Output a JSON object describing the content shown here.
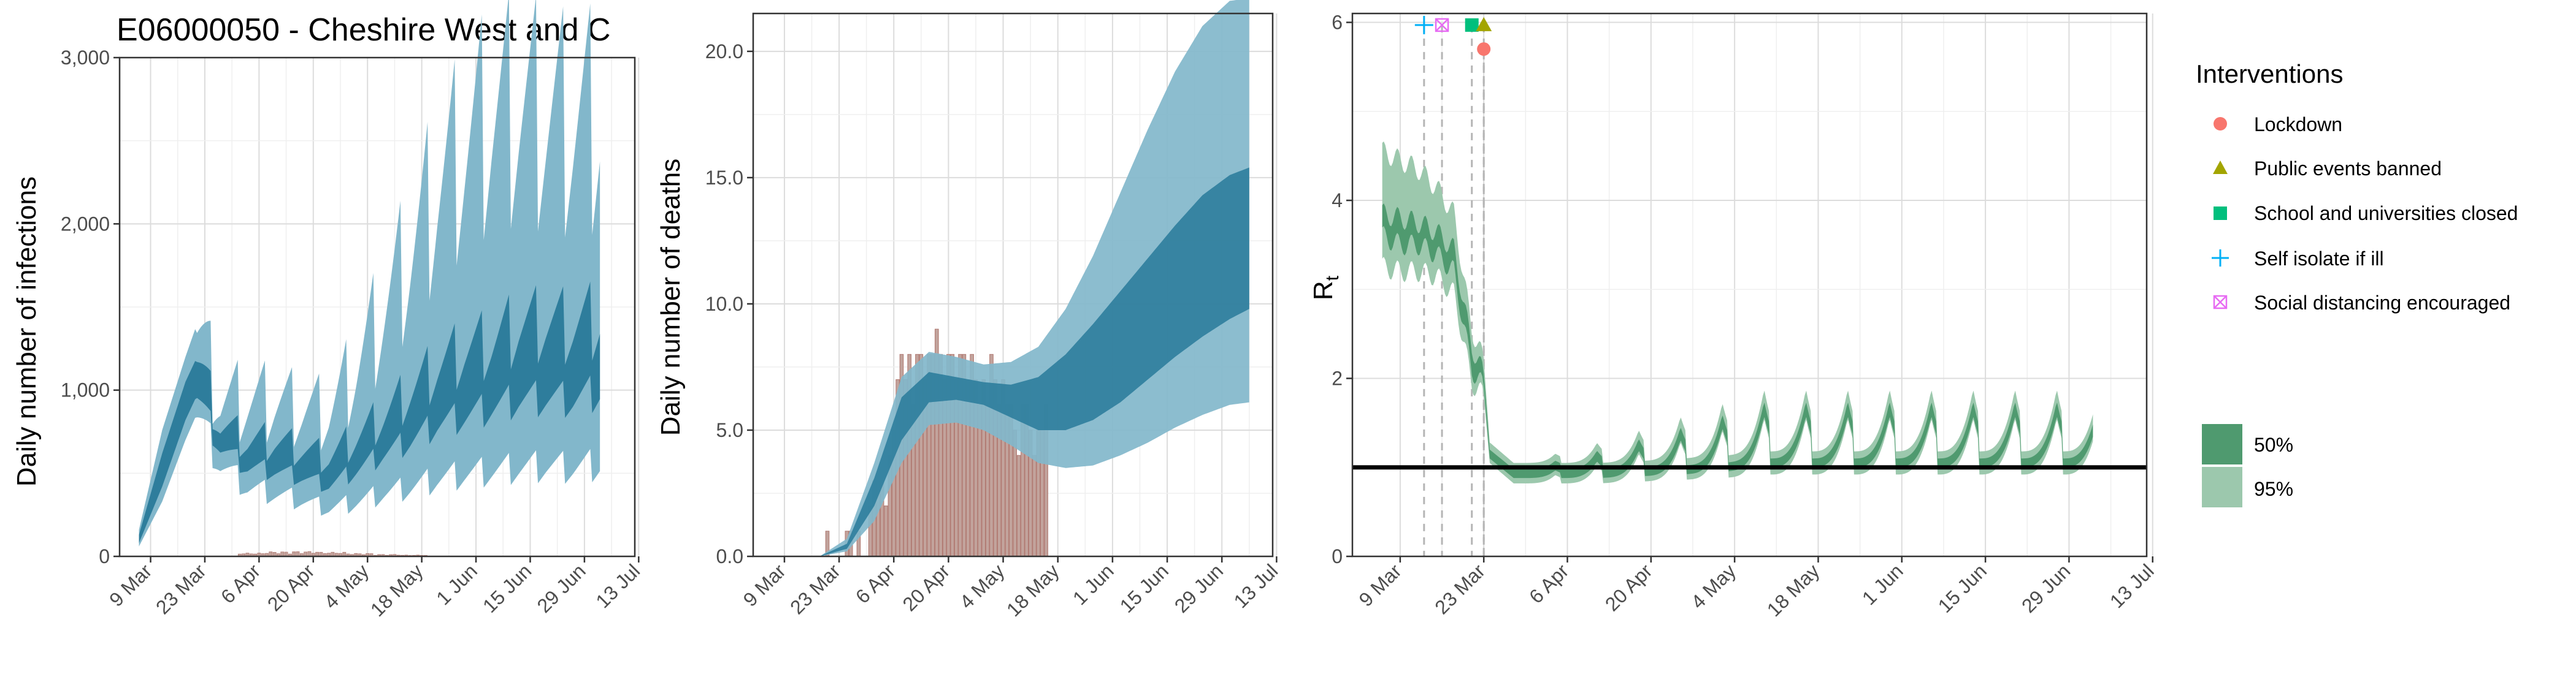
{
  "figure": {
    "title": "E06000050 - Cheshire West and C"
  },
  "colors": {
    "blue_dark": "#2e7d9c",
    "blue_light": "#82b7cb",
    "bar": "#c2a39c",
    "bar_stroke": "#b07870",
    "green_dark": "#4f9a6f",
    "green_light": "#9cc8ad",
    "grid_major": "#dcdcdc",
    "grid_minor": "#efefef",
    "lockdown": "#f8766d",
    "public_events": "#a3a500",
    "school": "#00bf7d",
    "self_isolate": "#00b0f6",
    "social_distancing": "#e76bf3"
  },
  "legend": {
    "interventions_title": "Interventions",
    "interventions": [
      {
        "label": "Lockdown",
        "shape": "circle",
        "color": "#f8766d"
      },
      {
        "label": "Public events banned",
        "shape": "triangle",
        "color": "#a3a500"
      },
      {
        "label": "School and universities closed",
        "shape": "square",
        "color": "#00bf7d"
      },
      {
        "label": "Self isolate if ill",
        "shape": "plus",
        "color": "#00b0f6"
      },
      {
        "label": "Social distancing encouraged",
        "shape": "boxx",
        "color": "#e76bf3"
      }
    ],
    "ci": [
      {
        "label": "50%",
        "color": "#4f9a6f"
      },
      {
        "label": "95%",
        "color": "#9cc8ad"
      }
    ]
  },
  "chart_data": [
    {
      "type": "area",
      "title": "E06000050 - Cheshire West and C",
      "ylabel": "Daily number of infections",
      "xlabel": "",
      "x_tick_labels": [
        "9 Mar",
        "23 Mar",
        "6 Apr",
        "20 Apr",
        "4 May",
        "18 May",
        "1 Jun",
        "15 Jun",
        "29 Jun",
        "13 Jul"
      ],
      "y_tick_labels": [
        "0",
        "1,000",
        "2,000",
        "3,000"
      ],
      "ylim": [
        0,
        3000
      ],
      "grid": true,
      "series": [
        {
          "name": "50%",
          "x": [
            "2020-03-06",
            "2020-03-12",
            "2020-03-18",
            "2020-03-21",
            "2020-03-27",
            "2020-04-03",
            "2020-04-10",
            "2020-04-17",
            "2020-04-24",
            "2020-05-01",
            "2020-05-08",
            "2020-05-15",
            "2020-05-22",
            "2020-05-29",
            "2020-06-05",
            "2020-06-12",
            "2020-06-19",
            "2020-06-26",
            "2020-07-03"
          ],
          "lower": [
            80,
            420,
            820,
            970,
            660,
            540,
            520,
            480,
            430,
            520,
            620,
            700,
            800,
            850,
            900,
            950,
            960,
            950,
            1000
          ],
          "upper": [
            130,
            620,
            1050,
            1200,
            800,
            700,
            700,
            650,
            600,
            720,
            850,
            1000,
            1150,
            1250,
            1300,
            1400,
            1420,
            1400,
            1450
          ]
        },
        {
          "name": "95%",
          "x": [
            "2020-03-06",
            "2020-03-12",
            "2020-03-18",
            "2020-03-21",
            "2020-03-27",
            "2020-04-03",
            "2020-04-10",
            "2020-04-17",
            "2020-04-24",
            "2020-05-01",
            "2020-05-08",
            "2020-05-15",
            "2020-05-22",
            "2020-05-29",
            "2020-06-05",
            "2020-06-12",
            "2020-06-19",
            "2020-06-26",
            "2020-07-03"
          ],
          "lower": [
            60,
            330,
            700,
            860,
            560,
            420,
            380,
            340,
            290,
            330,
            380,
            420,
            470,
            500,
            520,
            540,
            550,
            540,
            560
          ],
          "upper": [
            160,
            760,
            1200,
            1400,
            960,
            950,
            950,
            900,
            880,
            1150,
            1500,
            1850,
            2250,
            2500,
            2700,
            2750,
            2700,
            2650,
            2700
          ]
        }
      ],
      "weekly_amplitude_50": 0.18,
      "weekly_amplitude_95": 0.28,
      "bars": {
        "x": [
          "2020-04-01",
          "2020-04-08",
          "2020-04-15",
          "2020-04-22",
          "2020-04-29",
          "2020-05-06",
          "2020-05-13"
        ],
        "values": [
          20,
          28,
          30,
          25,
          18,
          12,
          8
        ]
      }
    },
    {
      "type": "bar",
      "title": "",
      "ylabel": "Daily number of deaths",
      "xlabel": "",
      "x_tick_labels": [
        "9 Mar",
        "23 Mar",
        "6 Apr",
        "20 Apr",
        "4 May",
        "18 May",
        "1 Jun",
        "15 Jun",
        "29 Jun",
        "13 Jul"
      ],
      "y_tick_labels": [
        "0.0",
        "5.0",
        "10.0",
        "15.0",
        "20.0"
      ],
      "ylim": [
        0,
        21.5
      ],
      "grid": true,
      "bars": {
        "x": [
          "2020-03-20",
          "2020-03-25",
          "2020-03-26",
          "2020-03-28",
          "2020-03-31",
          "2020-04-01",
          "2020-04-02",
          "2020-04-03",
          "2020-04-04",
          "2020-04-05",
          "2020-04-06",
          "2020-04-07",
          "2020-04-08",
          "2020-04-09",
          "2020-04-10",
          "2020-04-11",
          "2020-04-12",
          "2020-04-13",
          "2020-04-14",
          "2020-04-15",
          "2020-04-16",
          "2020-04-17",
          "2020-04-18",
          "2020-04-19",
          "2020-04-20",
          "2020-04-21",
          "2020-04-22",
          "2020-04-23",
          "2020-04-24",
          "2020-04-25",
          "2020-04-26",
          "2020-04-27",
          "2020-04-28",
          "2020-04-29",
          "2020-04-30",
          "2020-05-01",
          "2020-05-02",
          "2020-05-03",
          "2020-05-04",
          "2020-05-05",
          "2020-05-06",
          "2020-05-07",
          "2020-05-08",
          "2020-05-09",
          "2020-05-10",
          "2020-05-11",
          "2020-05-12",
          "2020-05-13",
          "2020-05-14",
          "2020-05-15"
        ],
        "values": [
          1,
          1,
          1,
          1,
          2,
          3,
          3,
          3,
          2,
          4,
          5,
          7,
          8,
          7,
          8,
          6,
          8,
          8,
          7,
          8,
          8,
          9,
          8,
          7,
          8,
          8,
          7,
          8,
          8,
          7,
          8,
          7,
          6,
          7,
          6,
          8,
          7,
          6,
          7,
          6,
          6,
          5,
          4,
          6,
          6,
          5,
          4,
          5,
          5,
          6
        ]
      },
      "series": [
        {
          "name": "50%",
          "x": [
            "2020-03-18",
            "2020-03-25",
            "2020-04-01",
            "2020-04-08",
            "2020-04-15",
            "2020-04-22",
            "2020-04-29",
            "2020-05-06",
            "2020-05-13",
            "2020-05-20",
            "2020-05-27",
            "2020-06-03",
            "2020-06-10",
            "2020-06-17",
            "2020-06-24",
            "2020-07-01",
            "2020-07-06"
          ],
          "lower": [
            0,
            0.3,
            2.0,
            4.6,
            6.1,
            6.2,
            6.0,
            5.5,
            5.0,
            5.0,
            5.4,
            6.1,
            7.0,
            7.9,
            8.7,
            9.4,
            9.8
          ],
          "upper": [
            0,
            0.5,
            3.1,
            6.3,
            7.3,
            7.1,
            6.9,
            6.8,
            7.1,
            8.0,
            9.2,
            10.5,
            11.8,
            13.1,
            14.3,
            15.1,
            15.4
          ]
        },
        {
          "name": "95%",
          "x": [
            "2020-03-18",
            "2020-03-25",
            "2020-04-01",
            "2020-04-08",
            "2020-04-15",
            "2020-04-22",
            "2020-04-29",
            "2020-05-06",
            "2020-05-13",
            "2020-05-20",
            "2020-05-27",
            "2020-06-03",
            "2020-06-10",
            "2020-06-17",
            "2020-06-24",
            "2020-07-01",
            "2020-07-06"
          ],
          "lower": [
            0,
            0.2,
            1.4,
            3.7,
            5.2,
            5.3,
            5.0,
            4.4,
            3.7,
            3.5,
            3.6,
            4.0,
            4.5,
            5.1,
            5.6,
            6.0,
            6.1
          ],
          "upper": [
            0,
            0.7,
            3.7,
            7.1,
            8.1,
            7.9,
            7.6,
            7.7,
            8.3,
            9.8,
            11.9,
            14.4,
            16.9,
            19.2,
            21.0,
            22.0,
            22.1
          ]
        }
      ]
    },
    {
      "type": "line",
      "title": "",
      "ylabel": "Rt",
      "xlabel": "",
      "x_tick_labels": [
        "9 Mar",
        "23 Mar",
        "6 Apr",
        "20 Apr",
        "4 May",
        "18 May",
        "1 Jun",
        "15 Jun",
        "29 Jun",
        "13 Jul"
      ],
      "y_tick_labels": [
        "0",
        "2",
        "4",
        "6"
      ],
      "ylim": [
        0,
        6.1
      ],
      "grid": true,
      "reference_line_y": 1,
      "interventions": [
        {
          "label": "Self isolate if ill",
          "date": "2020-03-13",
          "y": 5.97
        },
        {
          "label": "Social distancing encouraged",
          "date": "2020-03-16",
          "y": 5.97
        },
        {
          "label": "School and universities closed",
          "date": "2020-03-21",
          "y": 5.97
        },
        {
          "label": "Public events banned",
          "date": "2020-03-23",
          "y": 5.97
        },
        {
          "label": "Lockdown",
          "date": "2020-03-23",
          "y": 5.7
        }
      ],
      "series": [
        {
          "name": "50%",
          "x": [
            "2020-03-06",
            "2020-03-09",
            "2020-03-12",
            "2020-03-15",
            "2020-03-18",
            "2020-03-21",
            "2020-03-23",
            "2020-03-24",
            "2020-03-28",
            "2020-04-04",
            "2020-04-11",
            "2020-04-18",
            "2020-04-25",
            "2020-05-02",
            "2020-05-09",
            "2020-05-16",
            "2020-05-23",
            "2020-05-30",
            "2020-06-06",
            "2020-06-13",
            "2020-06-20",
            "2020-06-27",
            "2020-07-03"
          ],
          "lower": [
            3.6,
            3.5,
            3.5,
            3.4,
            3.2,
            2.1,
            1.9,
            1.1,
            0.88,
            0.88,
            0.88,
            0.9,
            0.92,
            0.95,
            1.0,
            1.0,
            1.0,
            1.0,
            1.0,
            1.0,
            1.0,
            1.0,
            1.0
          ],
          "upper": [
            3.85,
            3.8,
            3.75,
            3.65,
            3.45,
            2.35,
            2.05,
            1.2,
            0.98,
            0.98,
            0.98,
            1.0,
            1.02,
            1.05,
            1.1,
            1.1,
            1.1,
            1.1,
            1.1,
            1.1,
            1.1,
            1.1,
            1.1
          ]
        },
        {
          "name": "95%",
          "x": [
            "2020-03-06",
            "2020-03-09",
            "2020-03-12",
            "2020-03-15",
            "2020-03-18",
            "2020-03-21",
            "2020-03-23",
            "2020-03-24",
            "2020-03-28",
            "2020-04-04",
            "2020-04-11",
            "2020-04-18",
            "2020-04-25",
            "2020-05-02",
            "2020-05-09",
            "2020-05-16",
            "2020-05-23",
            "2020-05-30",
            "2020-06-06",
            "2020-06-13",
            "2020-06-20",
            "2020-06-27",
            "2020-07-03"
          ],
          "lower": [
            3.25,
            3.2,
            3.2,
            3.15,
            2.95,
            1.95,
            1.8,
            1.05,
            0.82,
            0.82,
            0.82,
            0.84,
            0.86,
            0.88,
            0.92,
            0.92,
            0.92,
            0.92,
            0.92,
            0.92,
            0.92,
            0.92,
            0.92
          ],
          "upper": [
            4.55,
            4.45,
            4.35,
            4.15,
            3.85,
            2.55,
            2.2,
            1.28,
            1.05,
            1.05,
            1.05,
            1.07,
            1.1,
            1.13,
            1.18,
            1.18,
            1.18,
            1.18,
            1.18,
            1.18,
            1.18,
            1.18,
            1.18
          ]
        }
      ],
      "weekly_peak": 0.7
    }
  ]
}
